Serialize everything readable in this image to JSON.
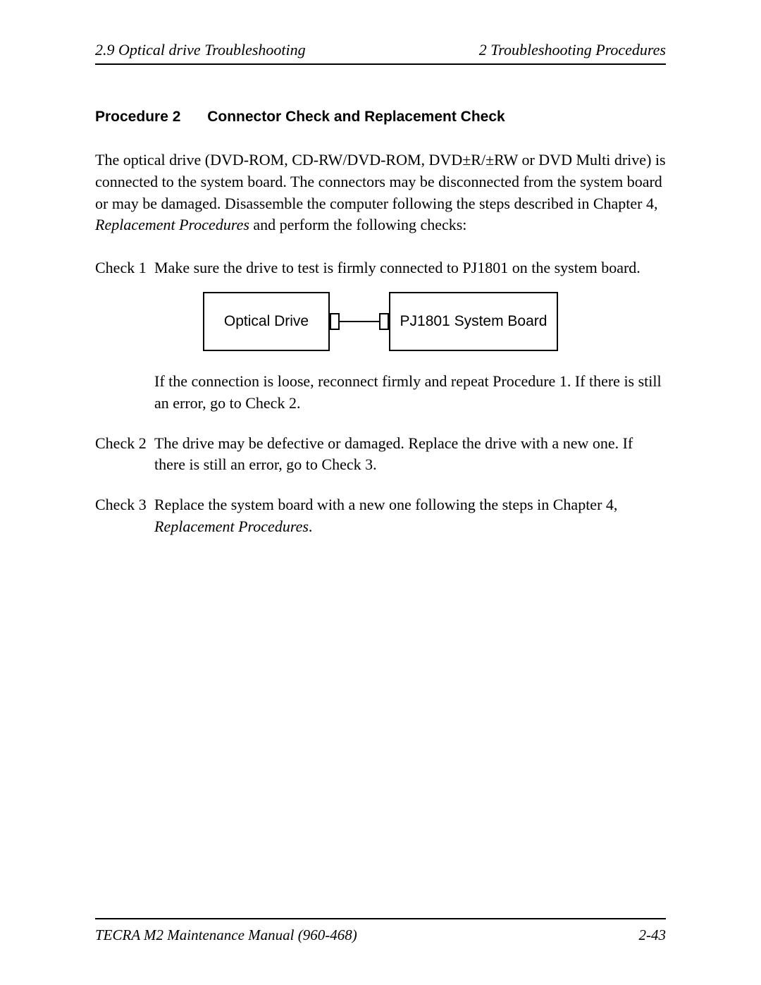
{
  "header": {
    "left": "2.9 Optical drive Troubleshooting",
    "right": "2  Troubleshooting Procedures"
  },
  "procedure": {
    "label": "Procedure 2",
    "title": "Connector Check and Replacement Check"
  },
  "intro": {
    "line1": "The optical drive (DVD-ROM, CD-RW/DVD-ROM, DVD±R/±RW or DVD Multi drive) is connected to the system board. The connectors may be disconnected from the system board or may be damaged. Disassemble the computer following the steps described in Chapter 4, ",
    "italic": "Replacement Procedures",
    "line2": " and perform the following checks:"
  },
  "checks": [
    {
      "label": "Check 1",
      "text_before": "Make sure the drive to test is firmly connected to PJ1801 on the system board.",
      "continuation": "If the connection is loose, reconnect firmly and repeat Procedure 1. If there is still an error, go to Check 2."
    },
    {
      "label": "Check 2",
      "text_before": "The drive may be defective or damaged. Replace the drive with a new one. If there is still an error, go to Check 3."
    },
    {
      "label": "Check 3",
      "text_before": "Replace the system board with a new one following the steps in Chapter 4, ",
      "italic": "Replacement Procedures",
      "text_after": "."
    }
  ],
  "diagram": {
    "left_box": "Optical Drive",
    "right_box": "PJ1801  System Board"
  },
  "footer": {
    "left": "TECRA M2 Maintenance Manual (960-468)",
    "right": "2-43"
  }
}
